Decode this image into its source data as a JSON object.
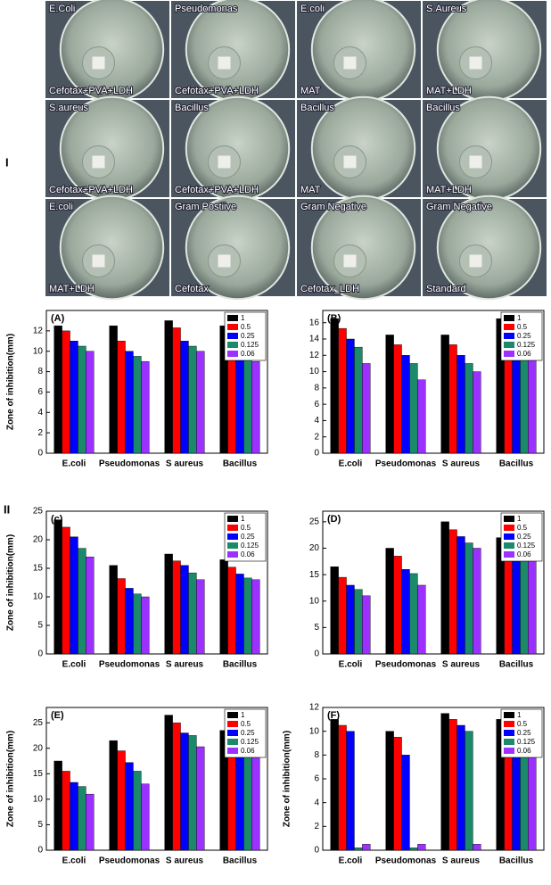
{
  "photos": {
    "label": "I",
    "tiles": [
      {
        "top": "E.Coli",
        "bottom": "Cefotax+PVA+LDH"
      },
      {
        "top": "Pseudomonas",
        "bottom": "Cefotax+PVA+LDH"
      },
      {
        "top": "E.coli",
        "bottom": "MAT"
      },
      {
        "top": "S.Aureus",
        "bottom": "MAT+LDH"
      },
      {
        "top": "S.aureus",
        "bottom": "Cefotax+PVA+LDH"
      },
      {
        "top": "Bacillus",
        "bottom": "Cefotax+PVA+LDH"
      },
      {
        "top": "Bacillus",
        "bottom": "MAT"
      },
      {
        "top": "Bacillus",
        "bottom": "MAT+LDH"
      },
      {
        "top": "E.coli",
        "bottom": "MAT+LDH"
      },
      {
        "top": "Gram Postiive",
        "bottom": "Cefotax"
      },
      {
        "top": "Gram Negative",
        "bottom": "Cefotax_LDH"
      },
      {
        "top": "Gram Negative",
        "bottom": "Standard"
      }
    ]
  },
  "section_label": "II",
  "chart_data": [
    {
      "type": "bar",
      "title": "(A)",
      "ylabel": "Zone of inhibition(mm)",
      "categories": [
        "E.coli",
        "Pseudomonas",
        "S aureus",
        "Bacillus"
      ],
      "ylim": [
        0,
        14
      ],
      "yticks": [
        0,
        2,
        4,
        6,
        8,
        10,
        12
      ],
      "series": [
        {
          "name": "1",
          "color": "#000000",
          "values": [
            12.5,
            12.5,
            13,
            12.5
          ]
        },
        {
          "name": "0.5",
          "color": "#ff0000",
          "values": [
            12,
            11,
            12.3,
            11.3
          ]
        },
        {
          "name": "0.25",
          "color": "#0000ff",
          "values": [
            11,
            10,
            11,
            10.3
          ]
        },
        {
          "name": "0.125",
          "color": "#1a8a6a",
          "values": [
            10.5,
            9.5,
            10.5,
            9.5
          ]
        },
        {
          "name": "0.06",
          "color": "#9b30ff",
          "values": [
            10,
            9,
            10,
            9
          ]
        }
      ]
    },
    {
      "type": "bar",
      "title": "(B)",
      "categories": [
        "E.coli",
        "Pseudomonas",
        "S aureus",
        "Bacillus"
      ],
      "ylim": [
        0,
        17.5
      ],
      "yticks": [
        0,
        2,
        4,
        6,
        8,
        10,
        12,
        14,
        16
      ],
      "series": [
        {
          "name": "1",
          "color": "#000000",
          "values": [
            16.5,
            14.5,
            14.5,
            16.5
          ]
        },
        {
          "name": "0.5",
          "color": "#ff0000",
          "values": [
            15.3,
            13.3,
            13.3,
            15.3
          ]
        },
        {
          "name": "0.25",
          "color": "#0000ff",
          "values": [
            14,
            12,
            12,
            15
          ]
        },
        {
          "name": "0.125",
          "color": "#1a8a6a",
          "values": [
            13,
            11,
            11,
            13.3
          ]
        },
        {
          "name": "0.06",
          "color": "#9b30ff",
          "values": [
            11,
            9,
            10,
            12
          ]
        }
      ]
    },
    {
      "type": "bar",
      "title": "(c)",
      "ylabel": "Zone of inhibition(mm)",
      "categories": [
        "E.coli",
        "Pseudomonas",
        "S aureus",
        "Bacillus"
      ],
      "ylim": [
        0,
        25
      ],
      "yticks": [
        0,
        5,
        10,
        15,
        20,
        25
      ],
      "series": [
        {
          "name": "1",
          "color": "#000000",
          "values": [
            23.5,
            15.5,
            17.5,
            16.5
          ]
        },
        {
          "name": "0.5",
          "color": "#ff0000",
          "values": [
            22.2,
            13.2,
            16.3,
            15.2
          ]
        },
        {
          "name": "0.25",
          "color": "#0000ff",
          "values": [
            20.5,
            11.5,
            15.5,
            14
          ]
        },
        {
          "name": "0.125",
          "color": "#1a8a6a",
          "values": [
            18.5,
            10.5,
            14.2,
            13.3
          ]
        },
        {
          "name": "0.06",
          "color": "#9b30ff",
          "values": [
            17,
            10,
            13,
            13
          ]
        }
      ]
    },
    {
      "type": "bar",
      "title": "(D)",
      "categories": [
        "E.coli",
        "Pseudomonas",
        "S aureus",
        "Bacillus"
      ],
      "ylim": [
        0,
        27
      ],
      "yticks": [
        0,
        5,
        10,
        15,
        20,
        25
      ],
      "series": [
        {
          "name": "1",
          "color": "#000000",
          "values": [
            16.5,
            20,
            25,
            22
          ]
        },
        {
          "name": "0.5",
          "color": "#ff0000",
          "values": [
            14.5,
            18.5,
            23.5,
            21
          ]
        },
        {
          "name": "0.25",
          "color": "#0000ff",
          "values": [
            13,
            16,
            22.2,
            20.3
          ]
        },
        {
          "name": "0.125",
          "color": "#1a8a6a",
          "values": [
            12.2,
            15.2,
            21,
            19
          ]
        },
        {
          "name": "0.06",
          "color": "#9b30ff",
          "values": [
            11,
            13,
            20,
            18
          ]
        }
      ]
    },
    {
      "type": "bar",
      "title": "(E)",
      "ylabel": "Zone of inhibition(mm)",
      "categories": [
        "E.coli",
        "Pseudomonas",
        "S aureus",
        "Bacillus"
      ],
      "ylim": [
        0,
        28
      ],
      "yticks": [
        0,
        5,
        10,
        15,
        20,
        25
      ],
      "series": [
        {
          "name": "1",
          "color": "#000000",
          "values": [
            17.5,
            21.5,
            26.5,
            23.5
          ]
        },
        {
          "name": "0.5",
          "color": "#ff0000",
          "values": [
            15.5,
            19.5,
            25,
            24
          ]
        },
        {
          "name": "0.25",
          "color": "#0000ff",
          "values": [
            13.3,
            17.2,
            23,
            23
          ]
        },
        {
          "name": "0.125",
          "color": "#1a8a6a",
          "values": [
            12.5,
            15.5,
            22.5,
            22.5
          ]
        },
        {
          "name": "0.06",
          "color": "#9b30ff",
          "values": [
            11,
            13,
            20.3,
            20.3
          ]
        }
      ]
    },
    {
      "type": "bar",
      "title": "(F)",
      "ylabel": "Zone of inhibition(mm)",
      "categories": [
        "E.coli",
        "Pseudomonas",
        "S aureus",
        "Bacillus"
      ],
      "ylim": [
        0,
        12
      ],
      "yticks": [
        0,
        2,
        4,
        6,
        8,
        10,
        12
      ],
      "series": [
        {
          "name": "1",
          "color": "#000000",
          "values": [
            11,
            10,
            11.5,
            11
          ]
        },
        {
          "name": "0.5",
          "color": "#ff0000",
          "values": [
            10.5,
            9.5,
            11,
            10
          ]
        },
        {
          "name": "0.25",
          "color": "#0000ff",
          "values": [
            10,
            8,
            10.5,
            9.5
          ]
        },
        {
          "name": "0.125",
          "color": "#1a8a6a",
          "values": [
            0.2,
            0.2,
            10,
            8.2
          ]
        },
        {
          "name": "0.06",
          "color": "#9b30ff",
          "values": [
            0.5,
            0.5,
            0.5,
            8
          ]
        }
      ]
    }
  ]
}
